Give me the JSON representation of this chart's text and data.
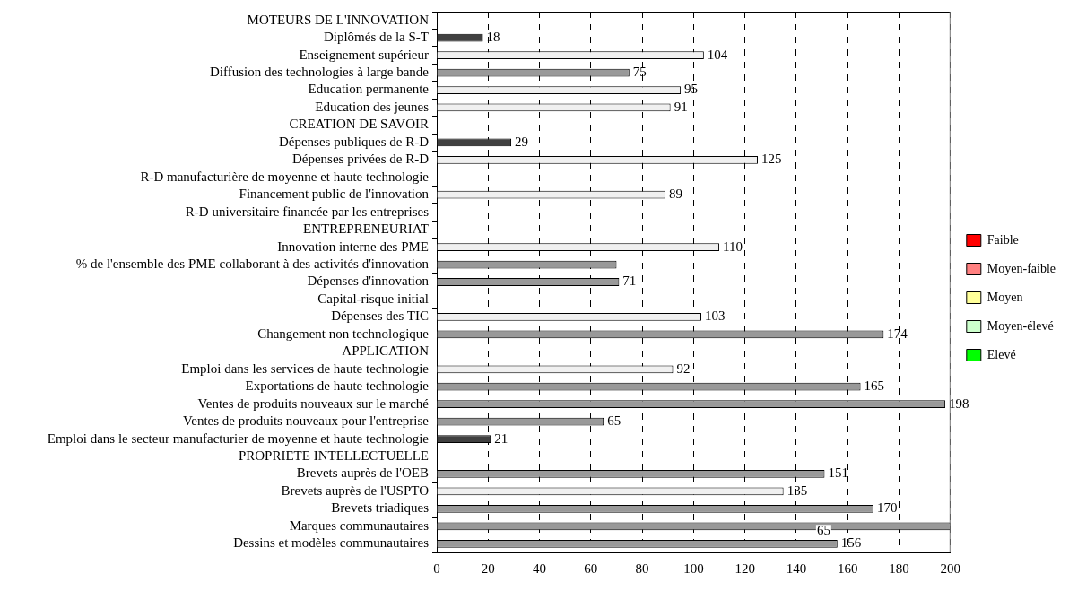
{
  "chart_data": {
    "type": "bar",
    "orientation": "horizontal",
    "categories": [
      "MOTEURS DE L'INNOVATION",
      "Diplômés de la S-T",
      "Enseignement supérieur",
      "Diffusion des technologies à large bande",
      "Education permanente",
      "Education des jeunes",
      "CREATION DE SAVOIR",
      "Dépenses publiques de R-D",
      "Dépenses privées de R-D",
      "R-D manufacturière de moyenne et haute technologie",
      "Financement public de l'innovation",
      "R-D universitaire financée par les entreprises",
      "ENTREPRENEURIAT",
      "Innovation interne des PME",
      "% de l'ensemble des PME collaborant à des activités d'innovation",
      "Dépenses d'innovation",
      "Capital-risque initial",
      "Dépenses des TIC",
      "Changement non technologique",
      "APPLICATION",
      "Emploi dans les services de haute technologie",
      "Exportations de haute technologie",
      "Ventes de produits nouveaux sur le marché",
      "Ventes de produits nouveaux pour l'entreprise",
      "Emploi dans le secteur manufacturier de moyenne et haute technologie",
      "PROPRIETE INTELLECTUELLE",
      "Brevets auprès de l'OEB",
      "Brevets auprès de l'USPTO",
      "Brevets triadiques",
      "Marques communautaires",
      "Dessins et modèles communautaires"
    ],
    "series": [
      {
        "values": [
          null,
          18,
          104,
          75,
          95,
          91,
          null,
          29,
          125,
          null,
          89,
          null,
          null,
          110,
          70,
          71,
          null,
          103,
          174,
          null,
          92,
          165,
          198,
          65,
          21,
          null,
          151,
          135,
          170,
          200,
          156
        ],
        "colors": [
          "#ffffff",
          "#404040",
          "#f0f0f0",
          "#999999",
          "#f0f0f0",
          "#f0f0f0",
          "#ffffff",
          "#404040",
          "#f0f0f0",
          "#ffffff",
          "#f0f0f0",
          "#ffffff",
          "#ffffff",
          "#f0f0f0",
          "#999999",
          "#999999",
          "#ffffff",
          "#f0f0f0",
          "#999999",
          "#ffffff",
          "#f0f0f0",
          "#999999",
          "#999999",
          "#999999",
          "#404040",
          "#ffffff",
          "#999999",
          "#f0f0f0",
          "#999999",
          "#999999",
          "#999999"
        ],
        "value_labels": [
          null,
          "18",
          "104",
          "75",
          "95",
          "91",
          null,
          "29",
          "125",
          null,
          "89",
          null,
          null,
          "110",
          null,
          "71",
          null,
          "103",
          "174",
          null,
          "92",
          "165",
          "198",
          "65",
          "21",
          null,
          "151",
          "135",
          "170",
          null,
          "156"
        ]
      },
      {
        "name": "Faible",
        "color": "#ff0000",
        "values": [
          null,
          null,
          null,
          null,
          null,
          null,
          null,
          null,
          null,
          null,
          null,
          null,
          null,
          null,
          null,
          null,
          null,
          null,
          null,
          null,
          null,
          null,
          null,
          null,
          null,
          null,
          null,
          null,
          null,
          null,
          null
        ]
      },
      {
        "name": "Moyen-faible",
        "color": "#ff8080",
        "values": [
          null,
          null,
          null,
          null,
          null,
          null,
          null,
          null,
          null,
          null,
          null,
          null,
          null,
          null,
          null,
          null,
          null,
          null,
          null,
          null,
          null,
          null,
          null,
          null,
          null,
          null,
          null,
          null,
          null,
          null,
          null
        ]
      },
      {
        "name": "Moyen",
        "color": "#ffff99",
        "values": [
          null,
          null,
          null,
          null,
          null,
          null,
          null,
          null,
          null,
          null,
          null,
          null,
          null,
          null,
          null,
          null,
          null,
          null,
          null,
          null,
          null,
          null,
          null,
          null,
          null,
          null,
          null,
          null,
          null,
          null,
          null
        ]
      },
      {
        "name": "Moyen-élevé",
        "color": "#ccffcc",
        "values": [
          null,
          null,
          null,
          null,
          null,
          null,
          null,
          null,
          null,
          null,
          null,
          null,
          null,
          null,
          null,
          null,
          null,
          null,
          null,
          null,
          null,
          null,
          null,
          null,
          null,
          null,
          null,
          null,
          null,
          null,
          null
        ]
      },
      {
        "name": "Elevé",
        "color": "#00ff00",
        "values": [
          null,
          null,
          null,
          null,
          null,
          null,
          null,
          null,
          null,
          null,
          null,
          null,
          null,
          null,
          null,
          null,
          null,
          null,
          null,
          null,
          null,
          null,
          null,
          null,
          null,
          null,
          null,
          null,
          null,
          null,
          null
        ]
      }
    ],
    "xlim": [
      0,
      200
    ],
    "xticks": [
      0,
      20,
      40,
      60,
      80,
      100,
      120,
      140,
      160,
      180,
      200
    ],
    "grid": "x",
    "legend": "right",
    "annotations": [
      {
        "text": "65",
        "x": 148,
        "y": "Dessins et modèles communautaires"
      }
    ]
  }
}
